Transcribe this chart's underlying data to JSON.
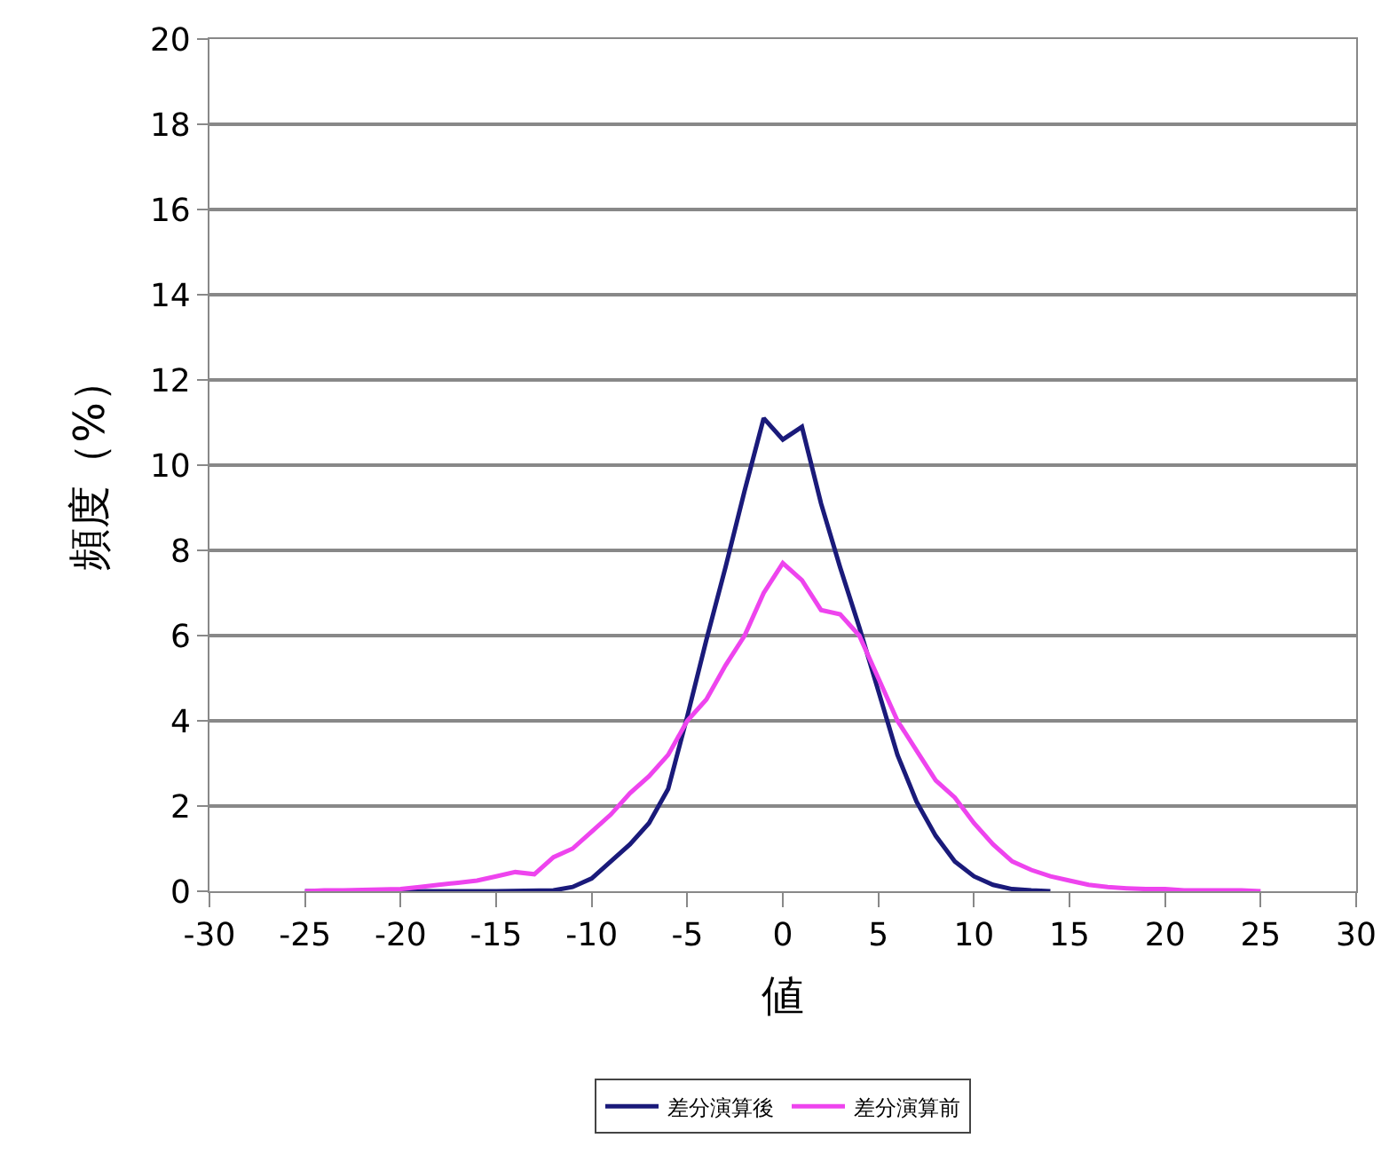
{
  "chart_data": {
    "type": "line",
    "xlabel": "値",
    "ylabel": "頻度（%）",
    "xlim": [
      -30,
      30
    ],
    "xticks": [
      -30,
      -25,
      -20,
      -15,
      -10,
      -5,
      0,
      5,
      10,
      15,
      20,
      25,
      30
    ],
    "ylim": [
      0,
      20
    ],
    "yticks": [
      0,
      2,
      4,
      6,
      8,
      10,
      12,
      14,
      16,
      18,
      20
    ],
    "grid": "y",
    "legend": "bottom",
    "marker": "none",
    "line_style": "solid",
    "series": [
      {
        "name": "差分演算後",
        "color": "#1a1a7a",
        "x": [
          -25,
          -20,
          -15,
          -12,
          -11,
          -10,
          -9,
          -8,
          -7,
          -6,
          -5,
          -4,
          -3,
          -2,
          -1,
          0,
          1,
          2,
          3,
          4,
          5,
          6,
          7,
          8,
          9,
          10,
          11,
          12,
          13,
          14
        ],
        "values": [
          0,
          0,
          0,
          0.02,
          0.1,
          0.3,
          0.7,
          1.1,
          1.6,
          2.4,
          4.1,
          5.9,
          7.6,
          9.4,
          11.1,
          10.6,
          10.9,
          9.1,
          7.6,
          6.2,
          4.7,
          3.2,
          2.1,
          1.3,
          0.7,
          0.35,
          0.15,
          0.05,
          0.02,
          0
        ]
      },
      {
        "name": "差分演算前",
        "color": "#ee44ee",
        "x": [
          -25,
          -24,
          -23,
          -22,
          -21,
          -20,
          -19,
          -18,
          -17,
          -16,
          -15,
          -14,
          -13,
          -12,
          -11,
          -10,
          -9,
          -8,
          -7,
          -6,
          -5,
          -4,
          -3,
          -2,
          -1,
          0,
          1,
          2,
          3,
          4,
          5,
          6,
          7,
          8,
          9,
          10,
          11,
          12,
          13,
          14,
          15,
          16,
          17,
          18,
          19,
          20,
          21,
          22,
          23,
          24,
          25
        ],
        "values": [
          0,
          0.02,
          0.02,
          0.03,
          0.04,
          0.05,
          0.1,
          0.15,
          0.2,
          0.25,
          0.35,
          0.45,
          0.4,
          0.8,
          1.0,
          1.4,
          1.8,
          2.3,
          2.7,
          3.2,
          4.0,
          4.5,
          5.3,
          6.0,
          7.0,
          7.7,
          7.3,
          6.6,
          6.5,
          6.0,
          5.0,
          4.0,
          3.3,
          2.6,
          2.2,
          1.6,
          1.1,
          0.7,
          0.5,
          0.35,
          0.25,
          0.15,
          0.1,
          0.07,
          0.05,
          0.05,
          0.02,
          0.02,
          0.02,
          0.02,
          0
        ]
      }
    ]
  }
}
